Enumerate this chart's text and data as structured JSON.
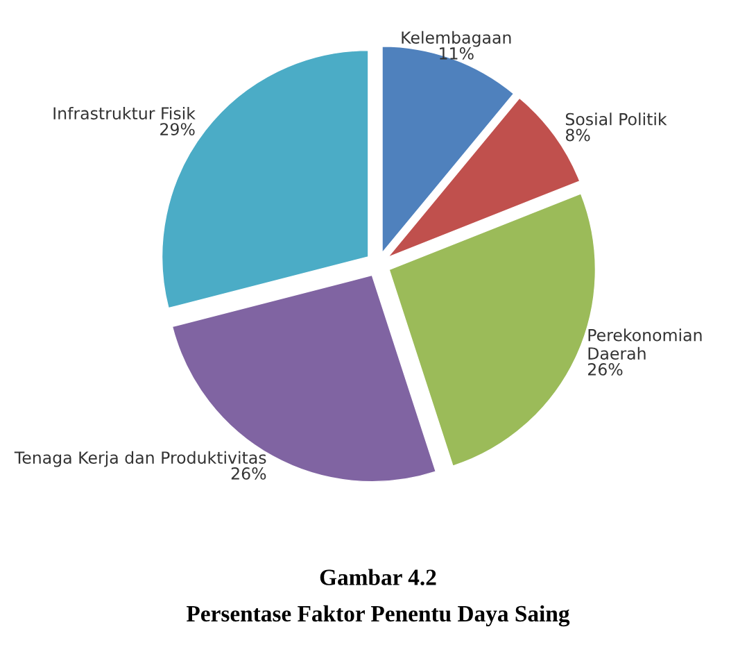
{
  "chart_data": {
    "type": "pie",
    "title": "Gambar 4.2",
    "subtitle": "Persentase Faktor Penentu Daya Saing",
    "categories": [
      "Kelembagaan",
      "Sosial Politik",
      "Perekonomian Daerah",
      "Tenaga Kerja dan Produktivitas",
      "Infrastruktur Fisik"
    ],
    "values": [
      11,
      8,
      26,
      26,
      29
    ],
    "colors": [
      "#4f81bd",
      "#c0504d",
      "#9bbb59",
      "#8064a2",
      "#4bacc6"
    ],
    "value_labels": [
      "11%",
      "8%",
      "26%",
      "26%",
      "29%"
    ],
    "legend": false
  }
}
